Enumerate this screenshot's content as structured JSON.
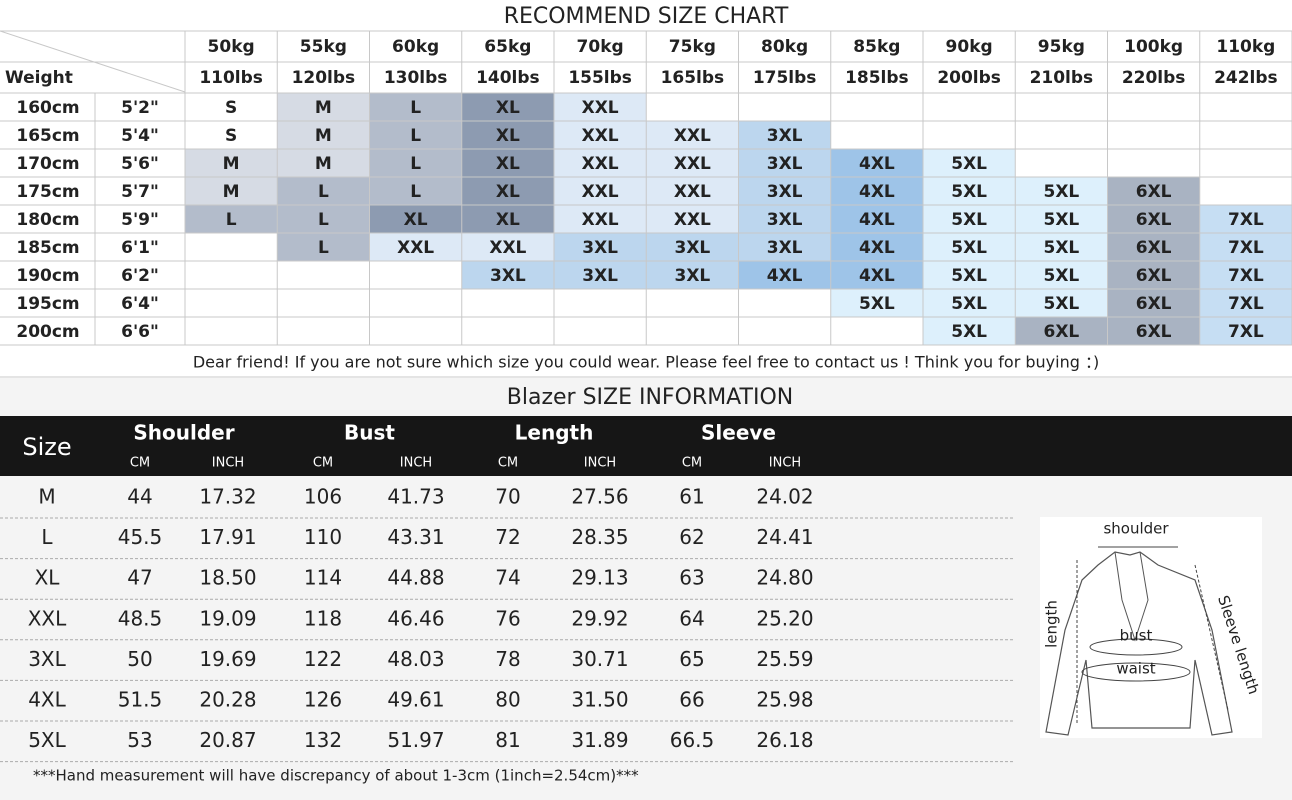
{
  "size_chart": {
    "title": "RECOMMEND SIZE CHART",
    "weight_label": "Weight",
    "kg": [
      "50kg",
      "55kg",
      "60kg",
      "65kg",
      "70kg",
      "75kg",
      "80kg",
      "85kg",
      "90kg",
      "95kg",
      "100kg",
      "110kg"
    ],
    "lbs": [
      "110lbs",
      "120lbs",
      "130lbs",
      "140lbs",
      "155lbs",
      "165lbs",
      "175lbs",
      "185lbs",
      "200lbs",
      "210lbs",
      "220lbs",
      "242lbs"
    ],
    "rows": [
      {
        "cm": "160cm",
        "ft": "5'2\"",
        "sizes": [
          "S",
          "M",
          "L",
          "XL",
          "XXL",
          null,
          null,
          null,
          null,
          null,
          null,
          null
        ]
      },
      {
        "cm": "165cm",
        "ft": "5'4\"",
        "sizes": [
          "S",
          "M",
          "L",
          "XL",
          "XXL",
          "XXL",
          "3XL",
          null,
          null,
          null,
          null,
          null
        ]
      },
      {
        "cm": "170cm",
        "ft": "5'6\"",
        "sizes": [
          "M",
          "M",
          "L",
          "XL",
          "XXL",
          "XXL",
          "3XL",
          "4XL",
          "5XL",
          null,
          null,
          null
        ]
      },
      {
        "cm": "175cm",
        "ft": "5'7\"",
        "sizes": [
          "M",
          "L",
          "L",
          "XL",
          "XXL",
          "XXL",
          "3XL",
          "4XL",
          "5XL",
          "5XL",
          "6XL",
          null
        ]
      },
      {
        "cm": "180cm",
        "ft": "5'9\"",
        "sizes": [
          "L",
          "L",
          "XL",
          "XL",
          "XXL",
          "XXL",
          "3XL",
          "4XL",
          "5XL",
          "5XL",
          "6XL",
          "7XL"
        ]
      },
      {
        "cm": "185cm",
        "ft": "6'1\"",
        "sizes": [
          null,
          "L",
          "XXL",
          "XXL",
          "3XL",
          "3XL",
          "3XL",
          "4XL",
          "5XL",
          "5XL",
          "6XL",
          "7XL"
        ]
      },
      {
        "cm": "190cm",
        "ft": "6'2\"",
        "sizes": [
          null,
          null,
          null,
          "3XL",
          "3XL",
          "3XL",
          "4XL",
          "4XL",
          "5XL",
          "5XL",
          "6XL",
          "7XL"
        ]
      },
      {
        "cm": "195cm",
        "ft": "6'4\"",
        "sizes": [
          null,
          null,
          null,
          null,
          null,
          null,
          null,
          "5XL",
          "5XL",
          "5XL",
          "6XL",
          "7XL"
        ]
      },
      {
        "cm": "200cm",
        "ft": "6'6\"",
        "sizes": [
          null,
          null,
          null,
          null,
          null,
          null,
          null,
          null,
          "5XL",
          "6XL",
          "6XL",
          "7XL"
        ]
      }
    ],
    "size_colors": {
      "S": "#ffffff",
      "M": "#d6dbe4",
      "L": "#b3bccb",
      "XL": "#8d9bb1",
      "XXL": "#dde9f6",
      "3XL": "#bcd6ee",
      "4XL": "#9ec4e8",
      "5XL": "#ddf0fc",
      "6XL": "#a9b3c2",
      "7XL": "#c6def3"
    },
    "note": "Dear friend! If you are not sure which size you could wear. Please feel free to contact us ! Think you for buying ：)"
  },
  "size_info": {
    "title": "Blazer SIZE INFORMATION",
    "size_header": "Size",
    "groups": [
      "Shoulder",
      "Bust",
      "Length",
      "Sleeve"
    ],
    "units": [
      "CM",
      "INCH",
      "CM",
      "INCH",
      "CM",
      "INCH",
      "CM",
      "INCH"
    ],
    "rows": [
      [
        "M",
        "44",
        "17.32",
        "106",
        "41.73",
        "70",
        "27.56",
        "61",
        "24.02"
      ],
      [
        "L",
        "45.5",
        "17.91",
        "110",
        "43.31",
        "72",
        "28.35",
        "62",
        "24.41"
      ],
      [
        "XL",
        "47",
        "18.50",
        "114",
        "44.88",
        "74",
        "29.13",
        "63",
        "24.80"
      ],
      [
        "XXL",
        "48.5",
        "19.09",
        "118",
        "46.46",
        "76",
        "29.92",
        "64",
        "25.20"
      ],
      [
        "3XL",
        "50",
        "19.69",
        "122",
        "48.03",
        "78",
        "30.71",
        "65",
        "25.59"
      ],
      [
        "4XL",
        "51.5",
        "20.28",
        "126",
        "49.61",
        "80",
        "31.50",
        "66",
        "25.98"
      ],
      [
        "5XL",
        "53",
        "20.87",
        "132",
        "51.97",
        "81",
        "31.89",
        "66.5",
        "26.18"
      ]
    ],
    "note": "***Hand measurement will have discrepancy of about 1-3cm (1inch=2.54cm)***"
  },
  "diagram": {
    "shoulder": "shoulder",
    "length": "length",
    "bust": "bust",
    "waist": "waist",
    "sleeve": "Sleeve length"
  }
}
